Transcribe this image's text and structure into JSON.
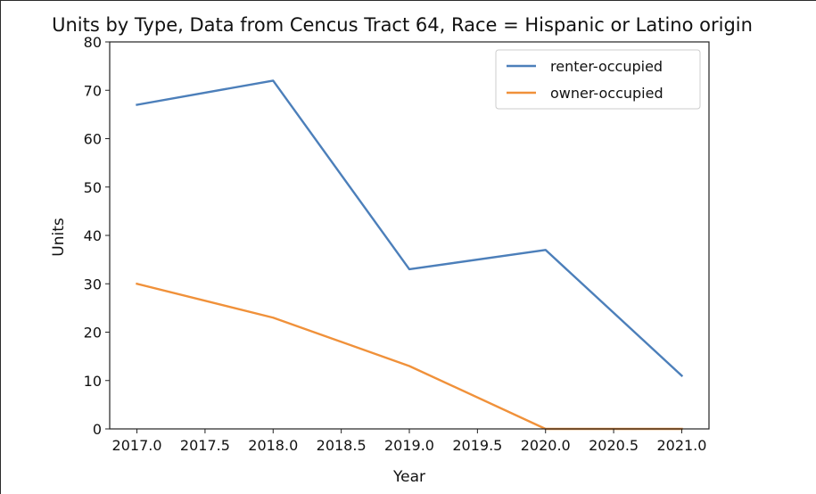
{
  "chart_data": {
    "type": "line",
    "title": "Units by Type, Data from Cencus Tract 64, Race = Hispanic or Latino origin",
    "xlabel": "Year",
    "ylabel": "Units",
    "x": [
      2017.0,
      2018.0,
      2019.0,
      2020.0,
      2021.0
    ],
    "xlim": [
      2016.8,
      2021.2
    ],
    "ylim": [
      0,
      80
    ],
    "xticks": [
      "2017.0",
      "2017.5",
      "2018.0",
      "2018.5",
      "2019.0",
      "2019.5",
      "2020.0",
      "2020.5",
      "2021.0"
    ],
    "yticks": [
      "0",
      "10",
      "20",
      "30",
      "40",
      "50",
      "60",
      "70",
      "80"
    ],
    "grid": false,
    "legend_position": "top-right",
    "series": [
      {
        "name": "renter-occupied",
        "color": "#4c7fba",
        "values": [
          67,
          72,
          33,
          37,
          11
        ]
      },
      {
        "name": "owner-occupied",
        "color": "#f0913a",
        "values": [
          30,
          23,
          13,
          0,
          0
        ]
      }
    ]
  }
}
